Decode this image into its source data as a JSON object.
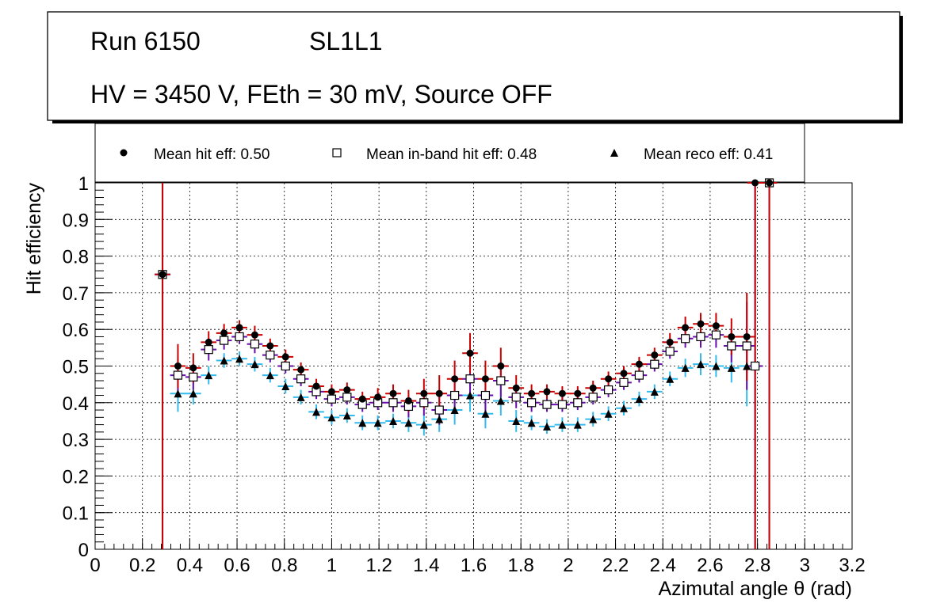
{
  "header": {
    "run": "Run 6150",
    "layer": "SL1L1",
    "conditions": "HV = 3450 V, FEth = 30 mV, Source OFF"
  },
  "legend": {
    "hit": "Mean hit  eff: 0.50",
    "inband": "Mean in-band hit eff: 0.48",
    "reco": "Mean reco eff: 0.41"
  },
  "chart_data": {
    "type": "scatter",
    "title": "",
    "xlabel": "Azimutal angle θ (rad)",
    "ylabel": "Hit efficiency",
    "xlim": [
      0,
      3.2
    ],
    "ylim": [
      0,
      1
    ],
    "grid": true,
    "legend_position": "top",
    "x_ticks": [
      "0",
      "0.2",
      "0.4",
      "0.6",
      "0.8",
      "1",
      "1.2",
      "1.4",
      "1.6",
      "1.8",
      "2",
      "2.2",
      "2.4",
      "2.6",
      "2.8",
      "3",
      "3.2"
    ],
    "y_ticks": [
      "0",
      "0.1",
      "0.2",
      "0.3",
      "0.4",
      "0.5",
      "0.6",
      "0.7",
      "0.8",
      "0.9",
      "1"
    ],
    "bin_half_width": 0.033,
    "x": [
      0.285,
      0.35,
      0.415,
      0.48,
      0.545,
      0.61,
      0.675,
      0.74,
      0.805,
      0.87,
      0.935,
      1.0,
      1.065,
      1.13,
      1.195,
      1.26,
      1.325,
      1.39,
      1.455,
      1.52,
      1.585,
      1.65,
      1.715,
      1.78,
      1.845,
      1.91,
      1.975,
      2.04,
      2.105,
      2.17,
      2.235,
      2.3,
      2.365,
      2.43,
      2.495,
      2.56,
      2.625,
      2.69,
      2.755,
      2.79,
      2.85
    ],
    "series": [
      {
        "name": "Mean hit  eff: 0.50",
        "marker": "circle",
        "color": "#000000",
        "bar_color": "#cc0000",
        "values": [
          0.75,
          0.5,
          0.495,
          0.565,
          0.59,
          0.605,
          0.585,
          0.555,
          0.525,
          0.49,
          0.445,
          0.43,
          0.435,
          0.41,
          0.415,
          0.425,
          0.405,
          0.425,
          0.425,
          0.465,
          0.535,
          0.465,
          0.5,
          0.44,
          0.425,
          0.43,
          0.425,
          0.425,
          0.44,
          0.465,
          0.48,
          0.505,
          0.53,
          0.565,
          0.605,
          0.615,
          0.61,
          0.58,
          0.58,
          1.0,
          1.0
        ],
        "errors": [
          0.75,
          0.06,
          0.04,
          0.03,
          0.025,
          0.02,
          0.025,
          0.02,
          0.02,
          0.02,
          0.02,
          0.02,
          0.02,
          0.02,
          0.025,
          0.025,
          0.03,
          0.04,
          0.05,
          0.05,
          0.055,
          0.05,
          0.05,
          0.035,
          0.025,
          0.02,
          0.02,
          0.02,
          0.02,
          0.02,
          0.02,
          0.02,
          0.02,
          0.025,
          0.03,
          0.03,
          0.035,
          0.05,
          0.12,
          1.0,
          1.0
        ]
      },
      {
        "name": "Mean in-band hit eff: 0.48",
        "marker": "open-square",
        "color": "#000000",
        "bar_color": "#6a0dad",
        "values": [
          0.75,
          0.475,
          0.47,
          0.545,
          0.57,
          0.58,
          0.56,
          0.53,
          0.5,
          0.465,
          0.43,
          0.41,
          0.415,
          0.395,
          0.4,
          0.4,
          0.39,
          0.4,
          0.38,
          0.42,
          0.465,
          0.42,
          0.46,
          0.415,
          0.4,
          0.395,
          0.395,
          0.4,
          0.415,
          0.435,
          0.455,
          0.475,
          0.505,
          0.54,
          0.575,
          0.58,
          0.585,
          0.555,
          0.555,
          0.5,
          1.0
        ],
        "errors": [
          0.75,
          0.05,
          0.035,
          0.03,
          0.025,
          0.02,
          0.025,
          0.02,
          0.02,
          0.02,
          0.02,
          0.02,
          0.02,
          0.02,
          0.02,
          0.025,
          0.03,
          0.035,
          0.04,
          0.045,
          0.05,
          0.045,
          0.045,
          0.03,
          0.025,
          0.02,
          0.02,
          0.02,
          0.02,
          0.02,
          0.02,
          0.02,
          0.02,
          0.02,
          0.025,
          0.03,
          0.035,
          0.045,
          0.12,
          0.5,
          1.0
        ]
      },
      {
        "name": "Mean reco eff: 0.41",
        "marker": "triangle",
        "color": "#000000",
        "bar_color": "#33bbee",
        "values": [
          0.75,
          0.425,
          0.425,
          0.475,
          0.515,
          0.52,
          0.505,
          0.475,
          0.445,
          0.415,
          0.375,
          0.36,
          0.365,
          0.345,
          0.345,
          0.35,
          0.345,
          0.34,
          0.355,
          0.38,
          0.42,
          0.37,
          0.405,
          0.35,
          0.345,
          0.335,
          0.34,
          0.34,
          0.355,
          0.37,
          0.385,
          0.41,
          0.43,
          0.465,
          0.495,
          0.505,
          0.5,
          0.495,
          0.5,
          0.5,
          1.0
        ],
        "errors": [
          0.75,
          0.05,
          0.03,
          0.025,
          0.02,
          0.02,
          0.02,
          0.02,
          0.02,
          0.02,
          0.02,
          0.02,
          0.02,
          0.02,
          0.02,
          0.02,
          0.025,
          0.03,
          0.035,
          0.04,
          0.045,
          0.04,
          0.04,
          0.03,
          0.02,
          0.02,
          0.02,
          0.02,
          0.02,
          0.02,
          0.02,
          0.02,
          0.02,
          0.02,
          0.025,
          0.03,
          0.03,
          0.04,
          0.11,
          0.5,
          1.0
        ]
      }
    ]
  }
}
